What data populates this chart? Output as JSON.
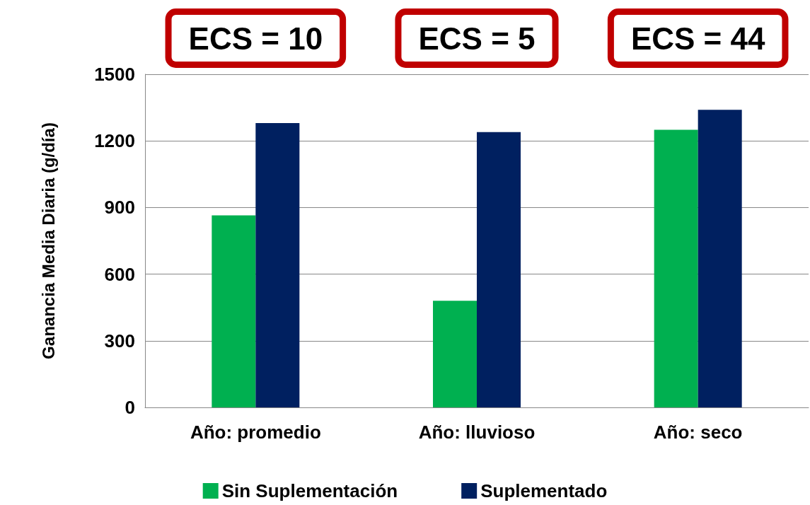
{
  "chart_data": {
    "type": "bar",
    "ylabel": "Ganancia Media Diaria (g/día)",
    "categories": [
      "Año: promedio",
      "Año: lluvioso",
      "Año: seco"
    ],
    "series": [
      {
        "name": "Sin Suplementación",
        "color": "#00b050",
        "values": [
          865,
          480,
          1250
        ]
      },
      {
        "name": "Suplementado",
        "color": "#002060",
        "values": [
          1280,
          1240,
          1340
        ]
      }
    ],
    "ylim": [
      0,
      1500
    ],
    "yticks": [
      0,
      300,
      600,
      900,
      1200,
      1500
    ],
    "grid": "y",
    "legend": "bottom",
    "annotations": [
      "ECS = 10",
      "ECS = 5",
      "ECS = 44"
    ]
  }
}
